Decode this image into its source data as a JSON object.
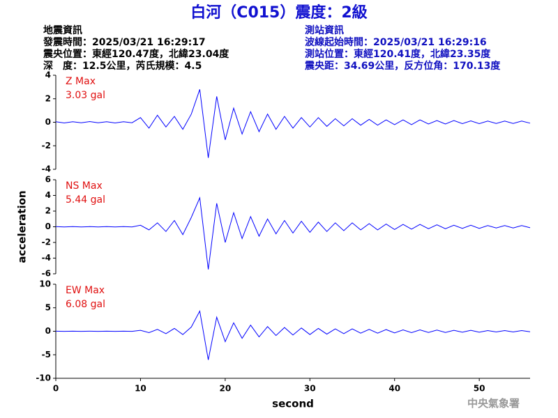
{
  "header": {
    "title": "白河（C015）震度：2級",
    "left": [
      "地震資訊",
      "發震時間：2025/03/21 16:29:17",
      "震央位置：東經120.47度，北緯23.04度",
      "深　度：12.5公里，芮氏規模：4.5"
    ],
    "right": [
      "測站資訊",
      "波線起始時間：2025/03/21 16:29:16",
      "測站位置：東經120.41度，北緯23.35度",
      "震央距：34.69公里，反方位角：170.13度"
    ]
  },
  "footer": "中央氣象署",
  "chart_data": [
    {
      "type": "line",
      "annotation": [
        "Z Max",
        "3.03 gal"
      ],
      "xlim": [
        0,
        56
      ],
      "ylim": [
        -4,
        4
      ],
      "yticks": [
        -4,
        -2,
        0,
        2,
        4
      ],
      "x": [
        0,
        1,
        2,
        3,
        4,
        5,
        6,
        7,
        8,
        9,
        10,
        11,
        12,
        13,
        14,
        15,
        16,
        17,
        18,
        19,
        20,
        21,
        22,
        23,
        24,
        25,
        26,
        27,
        28,
        29,
        30,
        31,
        32,
        33,
        34,
        35,
        36,
        37,
        38,
        39,
        40,
        41,
        42,
        43,
        44,
        45,
        46,
        47,
        48,
        49,
        50,
        51,
        52,
        53,
        54,
        55,
        56
      ],
      "series": [
        {
          "name": "Z",
          "color": "#0000ff",
          "values": [
            0.05,
            -0.06,
            0.04,
            -0.05,
            0.06,
            -0.04,
            0.05,
            -0.06,
            0.05,
            -0.04,
            0.4,
            -0.5,
            0.6,
            -0.4,
            0.5,
            -0.6,
            0.7,
            2.8,
            -3.03,
            2.2,
            -1.5,
            1.2,
            -1.0,
            0.9,
            -0.8,
            0.7,
            -0.6,
            0.5,
            -0.5,
            0.4,
            -0.4,
            0.4,
            -0.35,
            0.3,
            -0.3,
            0.3,
            -0.25,
            0.25,
            -0.25,
            0.2,
            -0.2,
            0.2,
            -0.2,
            0.2,
            -0.15,
            0.15,
            -0.15,
            0.15,
            -0.12,
            0.12,
            -0.12,
            0.1,
            -0.1,
            0.1,
            -0.1,
            0.1,
            -0.08
          ]
        }
      ]
    },
    {
      "type": "line",
      "annotation": [
        "NS Max",
        "5.44 gal"
      ],
      "ylabel": "acceleration",
      "xlim": [
        0,
        56
      ],
      "ylim": [
        -6,
        6
      ],
      "yticks": [
        -6,
        -4,
        -2,
        0,
        2,
        4,
        6
      ],
      "x": [
        0,
        1,
        2,
        3,
        4,
        5,
        6,
        7,
        8,
        9,
        10,
        11,
        12,
        13,
        14,
        15,
        16,
        17,
        18,
        19,
        20,
        21,
        22,
        23,
        24,
        25,
        26,
        27,
        28,
        29,
        30,
        31,
        32,
        33,
        34,
        35,
        36,
        37,
        38,
        39,
        40,
        41,
        42,
        43,
        44,
        45,
        46,
        47,
        48,
        49,
        50,
        51,
        52,
        53,
        54,
        55,
        56
      ],
      "series": [
        {
          "name": "NS",
          "color": "#0000ff",
          "values": [
            0.02,
            -0.02,
            0.02,
            -0.02,
            0.02,
            -0.02,
            0.02,
            -0.02,
            0.02,
            -0.02,
            0.2,
            -0.4,
            0.5,
            -0.6,
            0.8,
            -1.0,
            1.2,
            3.7,
            -5.44,
            3.0,
            -2.0,
            1.8,
            -1.5,
            1.3,
            -1.2,
            1.0,
            -0.9,
            0.8,
            -0.8,
            0.7,
            -0.7,
            0.6,
            -0.6,
            0.5,
            -0.5,
            0.5,
            -0.4,
            0.4,
            -0.4,
            0.35,
            -0.35,
            0.3,
            -0.3,
            0.3,
            -0.25,
            0.25,
            -0.25,
            0.2,
            -0.2,
            0.2,
            -0.2,
            0.15,
            -0.15,
            0.15,
            -0.15,
            0.15,
            -0.12
          ]
        }
      ]
    },
    {
      "type": "line",
      "annotation": [
        "EW Max",
        "6.08 gal"
      ],
      "xlabel": "second",
      "xlim": [
        0,
        56
      ],
      "xticks": [
        0,
        10,
        20,
        30,
        40,
        50
      ],
      "ylim": [
        -10,
        10
      ],
      "yticks": [
        -10,
        -5,
        0,
        5,
        10
      ],
      "x": [
        0,
        1,
        2,
        3,
        4,
        5,
        6,
        7,
        8,
        9,
        10,
        11,
        12,
        13,
        14,
        15,
        16,
        17,
        18,
        19,
        20,
        21,
        22,
        23,
        24,
        25,
        26,
        27,
        28,
        29,
        30,
        31,
        32,
        33,
        34,
        35,
        36,
        37,
        38,
        39,
        40,
        41,
        42,
        43,
        44,
        45,
        46,
        47,
        48,
        49,
        50,
        51,
        52,
        53,
        54,
        55,
        56
      ],
      "series": [
        {
          "name": "EW",
          "color": "#0000ff",
          "values": [
            0.02,
            -0.02,
            0.02,
            -0.02,
            0.02,
            -0.02,
            0.02,
            -0.02,
            0.02,
            -0.02,
            0.2,
            -0.3,
            0.4,
            -0.5,
            0.6,
            -0.7,
            0.9,
            4.3,
            -6.08,
            3.0,
            -2.2,
            1.8,
            -1.5,
            1.3,
            -1.2,
            1.0,
            -0.9,
            0.8,
            -0.8,
            0.7,
            -0.7,
            0.6,
            -0.6,
            0.5,
            -0.5,
            0.5,
            -0.4,
            0.4,
            -0.4,
            0.35,
            -0.35,
            0.3,
            -0.3,
            0.3,
            -0.25,
            0.25,
            -0.25,
            0.2,
            -0.2,
            0.2,
            -0.2,
            0.15,
            -0.15,
            0.15,
            -0.15,
            0.15,
            -0.12
          ]
        }
      ]
    }
  ]
}
